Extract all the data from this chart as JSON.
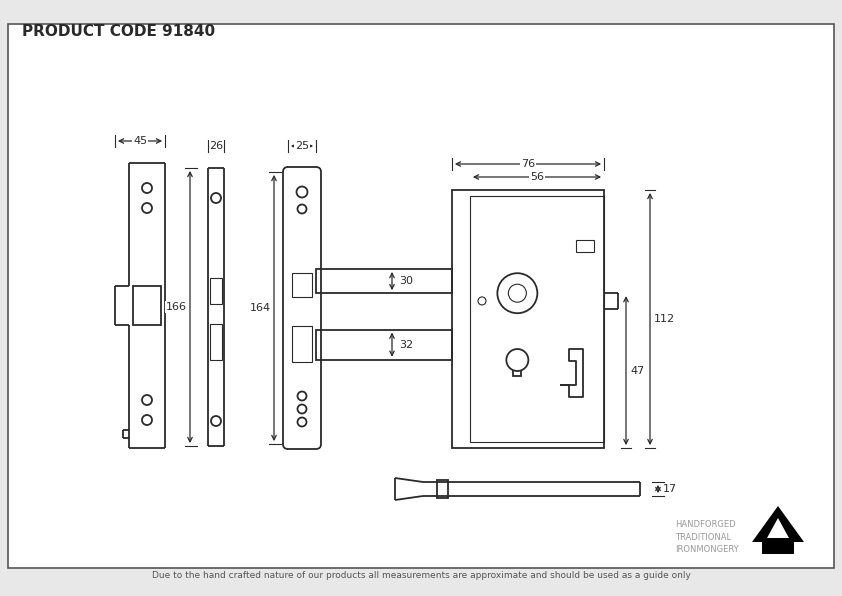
{
  "title": "PRODUCT CODE 91840",
  "footer": "Due to the hand crafted nature of our products all measurements are approximate and should be used as a guide only",
  "brand_text": [
    "HANDFORGED",
    "TRADITIONAL",
    "IRONMONGERY"
  ],
  "bg_color": "#e8e8e8",
  "drawing_bg": "#ffffff",
  "line_color": "#2a2a2a",
  "dim_color": "#2a2a2a"
}
